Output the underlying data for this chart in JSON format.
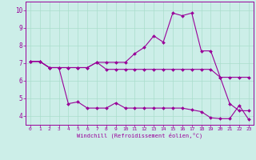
{
  "xlabel": "Windchill (Refroidissement éolien,°C)",
  "ylabel": "",
  "background_color": "#cceee8",
  "line_color": "#990099",
  "grid_color": "#aaddcc",
  "xlim": [
    -0.5,
    23.5
  ],
  "ylim": [
    3.5,
    10.5
  ],
  "xticks": [
    0,
    1,
    2,
    3,
    4,
    5,
    6,
    7,
    8,
    9,
    10,
    11,
    12,
    13,
    14,
    15,
    16,
    17,
    18,
    19,
    20,
    21,
    22,
    23
  ],
  "yticks": [
    4,
    5,
    6,
    7,
    8,
    9,
    10
  ],
  "line1_x": [
    0,
    1,
    2,
    3,
    4,
    5,
    6,
    7,
    8,
    9,
    10,
    11,
    12,
    13,
    14,
    15,
    16,
    17,
    18,
    19,
    20,
    21,
    22,
    23
  ],
  "line1_y": [
    7.1,
    7.1,
    6.75,
    6.75,
    6.75,
    6.75,
    6.75,
    7.05,
    7.05,
    7.05,
    7.05,
    7.55,
    7.9,
    8.55,
    8.2,
    9.85,
    9.7,
    9.85,
    7.7,
    7.7,
    6.2,
    6.2,
    6.2,
    6.2
  ],
  "line2_x": [
    0,
    1,
    2,
    3,
    4,
    5,
    6,
    7,
    8,
    9,
    10,
    11,
    12,
    13,
    14,
    15,
    16,
    17,
    18,
    19,
    20,
    21,
    22,
    23
  ],
  "line2_y": [
    7.1,
    7.1,
    6.75,
    6.75,
    4.7,
    4.8,
    4.45,
    4.45,
    4.45,
    4.75,
    4.45,
    4.45,
    4.45,
    4.45,
    4.45,
    4.45,
    4.45,
    4.35,
    4.25,
    3.9,
    3.85,
    3.85,
    4.6,
    3.8
  ],
  "line3_x": [
    0,
    1,
    2,
    3,
    4,
    5,
    6,
    7,
    8,
    9,
    10,
    11,
    12,
    13,
    14,
    15,
    16,
    17,
    18,
    19,
    20,
    21,
    22,
    23
  ],
  "line3_y": [
    7.1,
    7.1,
    6.75,
    6.75,
    6.75,
    6.75,
    6.75,
    7.05,
    6.65,
    6.65,
    6.65,
    6.65,
    6.65,
    6.65,
    6.65,
    6.65,
    6.65,
    6.65,
    6.65,
    6.65,
    6.2,
    4.7,
    4.3,
    4.3
  ]
}
